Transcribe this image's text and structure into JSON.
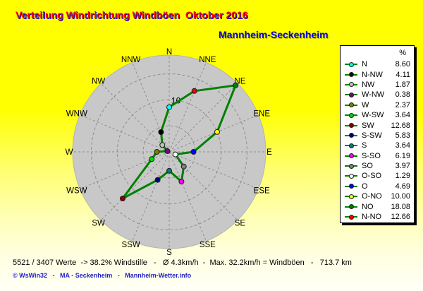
{
  "title": "Verteilung Windrichtung Windböen  Oktober 2016",
  "subtitle": "Mannheim-Seckenheim",
  "colors": {
    "background_top": "#FFFF00",
    "background_bottom": "#FFFFF6",
    "title": "#FF0000",
    "title_shadow": "#0000C8",
    "subtitle": "#0000E0",
    "disc": "#C8C8C8",
    "disc_edge": "#B4B4B4",
    "grid": "#8F8F8F",
    "line": "#008000",
    "label": "#000000"
  },
  "chart_data": {
    "type": "radar",
    "title": "Verteilung Windrichtung Windböen Oktober 2016",
    "subtitle": "Mannheim-Seckenheim",
    "axis_labels": [
      "N",
      "NNE",
      "NE",
      "ENE",
      "E",
      "ESE",
      "SE",
      "SSE",
      "S",
      "SSW",
      "SW",
      "WSW",
      "W",
      "WNW",
      "NW",
      "NNW"
    ],
    "series": [
      {
        "name": "Windböen %",
        "values": [
          8.6,
          12.66,
          18.08,
          10.0,
          4.69,
          1.29,
          3.97,
          6.19,
          3.64,
          5.83,
          12.68,
          3.64,
          2.37,
          0.38,
          1.87,
          4.11
        ]
      }
    ],
    "marker_colors": [
      "#00FFFF",
      "#FF0000",
      "#008000",
      "#FFFF00",
      "#0000FF",
      "#FFFFFF",
      "#808080",
      "#FF00FF",
      "#008080",
      "#000080",
      "#8B0000",
      "#00DC00",
      "#808000",
      "#800080",
      "#C0C0C0",
      "#000000"
    ],
    "rmax": 18.6,
    "grid_circles": [
      5,
      10,
      15
    ],
    "radial_tick_label": "10",
    "legend_position": "right",
    "grid": "dashed"
  },
  "legend": {
    "header": "%",
    "items": [
      {
        "label": "N",
        "value": "8.60",
        "color": "#00FFFF"
      },
      {
        "label": "N-NW",
        "value": "4.11",
        "color": "#000000"
      },
      {
        "label": "NW",
        "value": "1.87",
        "color": "#C0C0C0"
      },
      {
        "label": "W-NW",
        "value": "0.38",
        "color": "#800080"
      },
      {
        "label": "W",
        "value": "2.37",
        "color": "#808000"
      },
      {
        "label": "W-SW",
        "value": "3.64",
        "color": "#00DC00"
      },
      {
        "label": "SW",
        "value": "12.68",
        "color": "#8B0000"
      },
      {
        "label": "S-SW",
        "value": "5.83",
        "color": "#000080"
      },
      {
        "label": "S",
        "value": "3.64",
        "color": "#008080"
      },
      {
        "label": "S-SO",
        "value": "6.19",
        "color": "#FF00FF"
      },
      {
        "label": "SO",
        "value": "3.97",
        "color": "#808080"
      },
      {
        "label": "O-SO",
        "value": "1.29",
        "color": "#FFFFFF"
      },
      {
        "label": "O",
        "value": "4.69",
        "color": "#0000FF"
      },
      {
        "label": "O-NO",
        "value": "10.00",
        "color": "#FFFF00"
      },
      {
        "label": "NO",
        "value": "18.08",
        "color": "#008000"
      },
      {
        "label": "N-NO",
        "value": "12.66",
        "color": "#FF0000"
      }
    ]
  },
  "status_line": "5521 / 3407 Werte  -> 38.2% Windstille   -   Ø 4.3km/h  -  Max. 32.2km/h = Windböen   -   713.7 km",
  "footer": "© WsWin32   -   MA - Seckenheim   -   Mannheim-Wetter.info"
}
